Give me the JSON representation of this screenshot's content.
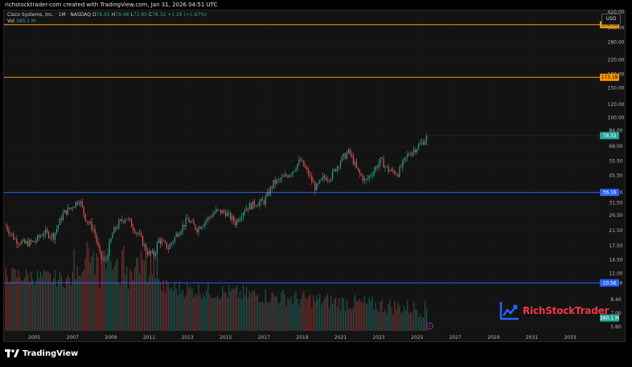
{
  "header": {
    "text": "richstocktrader-com created with TradingView.com, Jan 31, 2026 04:51 UTC"
  },
  "legend": {
    "title": "Cisco Systems, Inc. · 1M · NASDAQ",
    "o_label": "O",
    "o_val": "76.65",
    "h_label": "H",
    "h_val": "79.48",
    "l_label": "L",
    "l_val": "72.80",
    "c_label": "C",
    "c_val": "78.32",
    "change": "+1.29 (+1.67%)",
    "vol_label": "Vol",
    "vol_val": "380.1 M"
  },
  "currency": "USD",
  "brand": {
    "name": "RichStockTrader"
  },
  "footer": {
    "logo_text": "TradingView"
  },
  "colors": {
    "up": "#26a69a",
    "down": "#ef5350",
    "resistance": "#ff9800",
    "support": "#2962ff",
    "price_badge": "#26a69a"
  },
  "chart_data": {
    "type": "candlestick",
    "scale": "log",
    "x_ticks": [
      "2005",
      "2007",
      "2009",
      "2011",
      "2013",
      "2015",
      "2017",
      "2019",
      "2021",
      "2023",
      "2025",
      "2027",
      "2029",
      "2031",
      "2033"
    ],
    "y_ticks": [
      "420.00",
      "340.00",
      "280.00",
      "220.00",
      "180.00",
      "150.00",
      "120.00",
      "100.00",
      "84.00",
      "68.00",
      "55.50",
      "45.50",
      "36.16",
      "31.50",
      "26.50",
      "21.50",
      "17.50",
      "14.50",
      "12.00",
      "10.56",
      "8.40",
      "7.00",
      "5.80"
    ],
    "y_range": [
      5.5,
      430
    ],
    "horizontal_levels": [
      {
        "value": 354.38,
        "label": "354.38",
        "color": "#ff9800"
      },
      {
        "value": 173.18,
        "label": "173.18",
        "color": "#ff9800"
      },
      {
        "value": 36.16,
        "label": "36.16",
        "color": "#2962ff"
      },
      {
        "value": 10.56,
        "label": "10.56",
        "color": "#2962ff"
      }
    ],
    "last_price": {
      "value": 78.32,
      "label": "78.32"
    },
    "last_volume": {
      "label": "380.1 M"
    },
    "price_path": [
      [
        2004.0,
        23
      ],
      [
        2004.5,
        19
      ],
      [
        2005.0,
        18
      ],
      [
        2005.5,
        18.5
      ],
      [
        2006.0,
        21
      ],
      [
        2006.5,
        20
      ],
      [
        2007.0,
        27
      ],
      [
        2007.5,
        30
      ],
      [
        2007.85,
        33
      ],
      [
        2008.2,
        25
      ],
      [
        2008.6,
        22
      ],
      [
        2008.95,
        15
      ],
      [
        2009.2,
        14
      ],
      [
        2009.6,
        21
      ],
      [
        2009.95,
        24
      ],
      [
        2010.3,
        26
      ],
      [
        2010.6,
        23
      ],
      [
        2011.0,
        20
      ],
      [
        2011.4,
        16
      ],
      [
        2011.75,
        15.5
      ],
      [
        2012.0,
        19
      ],
      [
        2012.5,
        17
      ],
      [
        2013.0,
        21
      ],
      [
        2013.5,
        25
      ],
      [
        2014.0,
        22
      ],
      [
        2014.5,
        25
      ],
      [
        2015.0,
        28
      ],
      [
        2015.5,
        27.5
      ],
      [
        2016.0,
        24
      ],
      [
        2016.5,
        29
      ],
      [
        2017.0,
        31
      ],
      [
        2017.5,
        32
      ],
      [
        2018.0,
        41
      ],
      [
        2018.5,
        44
      ],
      [
        2018.95,
        48
      ],
      [
        2019.4,
        56
      ],
      [
        2019.8,
        47
      ],
      [
        2020.2,
        38
      ],
      [
        2020.6,
        44
      ],
      [
        2021.0,
        45
      ],
      [
        2021.5,
        56
      ],
      [
        2021.95,
        63
      ],
      [
        2022.4,
        48
      ],
      [
        2022.8,
        42
      ],
      [
        2023.3,
        50
      ],
      [
        2023.6,
        56
      ],
      [
        2024.0,
        49
      ],
      [
        2024.5,
        47
      ],
      [
        2025.0,
        60
      ],
      [
        2025.5,
        67
      ],
      [
        2025.8,
        72
      ],
      [
        2026.08,
        78.32
      ]
    ],
    "volume_range_M": [
      0,
      1700
    ]
  }
}
